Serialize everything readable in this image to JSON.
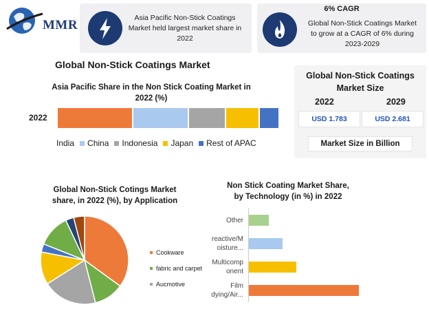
{
  "header": {
    "logo_text": "MMR",
    "card_left": {
      "icon": "lightning-bolt-icon",
      "lines": [
        "Asia Pacific Non-Stick Coatings",
        "Market held largest market share in",
        "2022"
      ]
    },
    "card_right": {
      "title": "6% CAGR",
      "icon": "flame-icon",
      "lines": [
        "Global Non-Stick Coatings Market",
        "to grow at a CAGR of 6% during",
        "2023-2029"
      ]
    }
  },
  "main_title": "Global Non-Stick Coatings Market",
  "regional_chart": {
    "title_lines": [
      "Asia Pacific Share in the Non Stick Coating Market in",
      "2022 (%)"
    ],
    "year": "2022",
    "legend": [
      "India",
      "China",
      "Indonesia",
      "Japan",
      "Rest of APAC"
    ]
  },
  "market_size": {
    "title_lines": [
      "Global Non-Stick Coatings",
      "Market Size"
    ],
    "year_a": "2022",
    "year_b": "2029",
    "value_a": "USD 1.783",
    "value_b": "USD 2.681",
    "unit_label": "Market Size in Billion"
  },
  "application_chart": {
    "title_lines": [
      "Global Non-Stick Cotings Market",
      "share, in 2022 (%), by Application"
    ],
    "legend": [
      "Cookware",
      "fabric and carpet",
      "Aucmotive"
    ]
  },
  "technology_chart": {
    "title_lines": [
      "Non Stick Coating Market Share,",
      "by Technology (in %) in 2022"
    ],
    "labels": [
      [
        "Other"
      ],
      [
        "reactive/M",
        "oisture..."
      ],
      [
        "Multicomp",
        "onent"
      ],
      [
        "Film",
        "dying/Air..."
      ]
    ]
  },
  "colors": {
    "navy": "#1d3a72",
    "orange": "#ee7a3a",
    "light_blue": "#a9c9ee",
    "gray": "#a5a5a5",
    "yellow": "#f6c000",
    "blue": "#4472c4",
    "green": "#70ad47",
    "light_green": "#a9d18e",
    "teal": "#264478",
    "brown": "#9e480e"
  },
  "chart_data": [
    {
      "type": "bar",
      "orientation": "horizontal-stacked",
      "title": "Asia Pacific Share in the Non Stick Coating Market in 2022 (%)",
      "categories": [
        "2022"
      ],
      "series": [
        {
          "name": "India",
          "values": [
            34
          ]
        },
        {
          "name": "China",
          "values": [
            25
          ]
        },
        {
          "name": "Indonesia",
          "values": [
            17
          ]
        },
        {
          "name": "Japan",
          "values": [
            15
          ]
        },
        {
          "name": "Rest of APAC",
          "values": [
            9
          ]
        }
      ],
      "legend_position": "bottom",
      "grid": false
    },
    {
      "type": "pie",
      "title": "Global Non-Stick Cotings Market share, in 2022 (%), by Application",
      "slices": [
        {
          "name": "Cookware",
          "value": 35
        },
        {
          "name": "fabric and carpet",
          "value": 11
        },
        {
          "name": "Aucmotive",
          "value": 20
        },
        {
          "name": "",
          "value": 12
        },
        {
          "name": "",
          "value": 3
        },
        {
          "name": "",
          "value": 12
        },
        {
          "name": "",
          "value": 3
        },
        {
          "name": "",
          "value": 4
        }
      ],
      "legend_position": "right"
    },
    {
      "type": "bar",
      "orientation": "horizontal",
      "title": "Non Stick Coating Market Share, by Technology (in %) in 2022",
      "categories": [
        "Other",
        "reactive/Moisture...",
        "Multicomponent",
        "Film dying/Air..."
      ],
      "values": [
        10,
        17,
        24,
        56
      ],
      "bar_colors": [
        "#a9d18e",
        "#a9c9ee",
        "#f6c000",
        "#ee7a3a"
      ],
      "grid": false
    }
  ]
}
